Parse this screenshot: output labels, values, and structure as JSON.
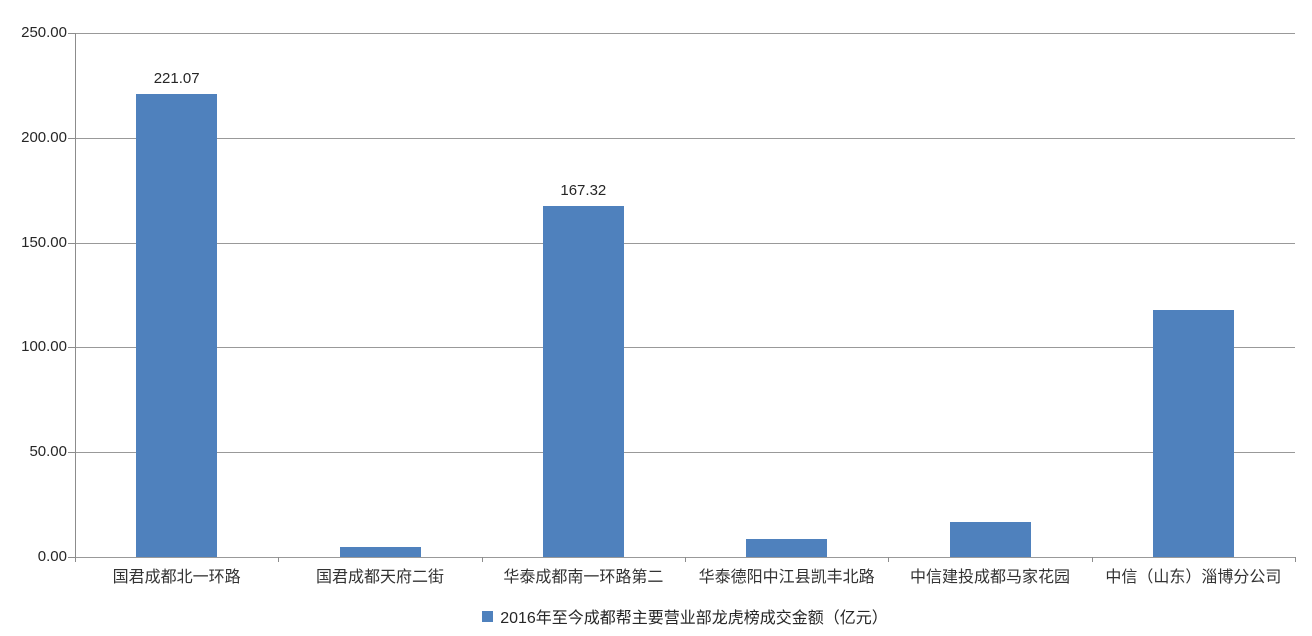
{
  "chart_data": {
    "type": "bar",
    "title": "",
    "xlabel": "",
    "ylabel": "",
    "categories": [
      "国君成都北一环路",
      "国君成都天府二街",
      "华泰成都南一环路第二",
      "华泰德阳中江县凯丰北路",
      "中信建投成都马家花园",
      "中信（山东）淄博分公司"
    ],
    "values": [
      221.07,
      5.0,
      167.32,
      8.7,
      16.7,
      118.0
    ],
    "data_labels": [
      "221.07",
      "",
      "167.32",
      "",
      "",
      ""
    ],
    "ylim": [
      0,
      250
    ],
    "ytick_step": 50,
    "ytick_labels": [
      "0.00",
      "50.00",
      "100.00",
      "150.00",
      "200.00",
      "250.00"
    ],
    "grid": true,
    "legend": "2016年至今成都帮主要营业部龙虎榜成交金额（亿元）",
    "legend_position": "bottom",
    "colors": {
      "bar": "#4F81BD",
      "gridline": "#999999",
      "axis": "#8c8c8c",
      "text": "#262626",
      "background": "#FFFFFF"
    }
  }
}
